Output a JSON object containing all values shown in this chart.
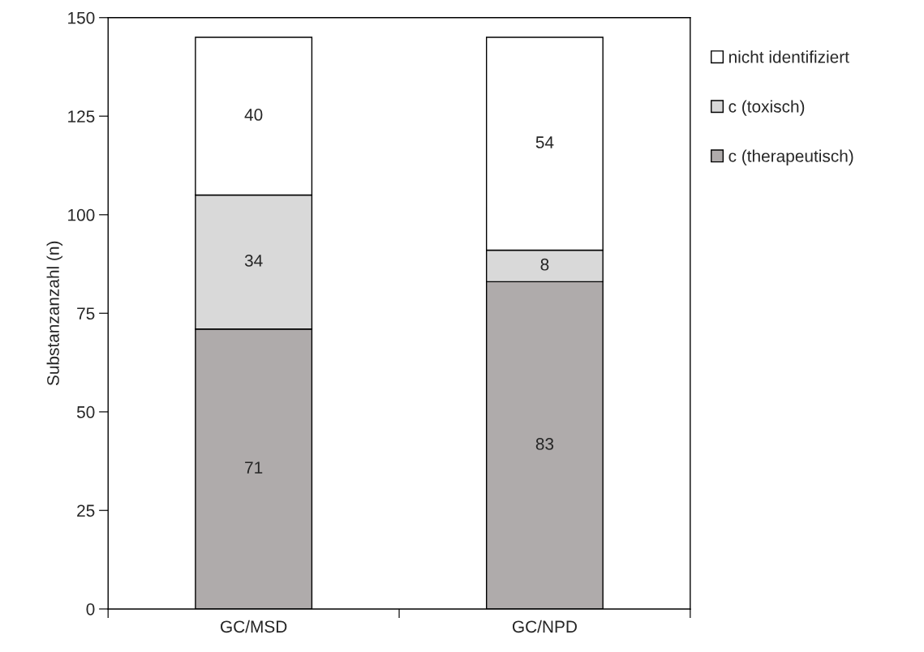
{
  "chart_data": {
    "type": "bar",
    "ylabel": "Substanzanzahl (n)",
    "categories": [
      "GC/MSD",
      "GC/NPD"
    ],
    "series": [
      {
        "name": "c (therapeutisch)",
        "color": "#afabab",
        "values": [
          71,
          83
        ]
      },
      {
        "name": "c (toxisch)",
        "color": "#d9d9d9",
        "values": [
          34,
          8
        ]
      },
      {
        "name": "nicht identifiziert",
        "color": "#ffffff",
        "values": [
          40,
          54
        ]
      }
    ],
    "stacked": true,
    "data_labels": true,
    "ylim": [
      0,
      150
    ],
    "yticks": [
      0,
      25,
      50,
      75,
      100,
      125,
      150
    ],
    "grid": false,
    "legend": "top right"
  }
}
